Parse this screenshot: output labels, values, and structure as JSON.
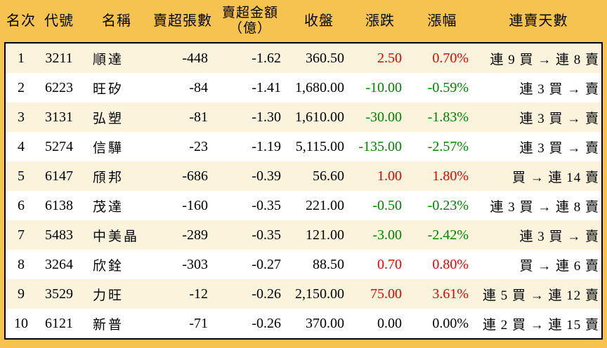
{
  "colors": {
    "frame_orange": "#f6c250",
    "border_black": "#000000",
    "row_stripe_cream": "#fbf3dc",
    "row_white": "#ffffff",
    "text": "#000000",
    "up_red": "#e60000",
    "down_green": "#008000"
  },
  "header": {
    "rank": "名次",
    "code": "代號",
    "name": "名稱",
    "sell_volume": "賣超張數",
    "sell_amount_line1": "賣超金額",
    "sell_amount_line2": "（億）",
    "close": "收盤",
    "change": "漲跌",
    "change_pct": "漲幅",
    "streak": "連賣天數"
  },
  "chart_data": {
    "type": "table",
    "columns": [
      "名次",
      "代號",
      "名稱",
      "賣超張數",
      "賣超金額（億）",
      "收盤",
      "漲跌",
      "漲幅",
      "連賣天數"
    ],
    "rows": [
      {
        "rank": "1",
        "code": "3211",
        "name": "順達",
        "sell_volume": "-448",
        "sell_amount": "-1.62",
        "close": "360.50",
        "change": "2.50",
        "change_pct": "0.70%",
        "streak": "連 9 買 → 連 8 賣",
        "trend": "up"
      },
      {
        "rank": "2",
        "code": "6223",
        "name": "旺矽",
        "sell_volume": "-84",
        "sell_amount": "-1.41",
        "close": "1,680.00",
        "change": "-10.00",
        "change_pct": "-0.59%",
        "streak": "連 3 買 → 賣",
        "trend": "down"
      },
      {
        "rank": "3",
        "code": "3131",
        "name": "弘塑",
        "sell_volume": "-81",
        "sell_amount": "-1.30",
        "close": "1,610.00",
        "change": "-30.00",
        "change_pct": "-1.83%",
        "streak": "連 3 買 → 賣",
        "trend": "down"
      },
      {
        "rank": "4",
        "code": "5274",
        "name": "信驊",
        "sell_volume": "-23",
        "sell_amount": "-1.19",
        "close": "5,115.00",
        "change": "-135.00",
        "change_pct": "-2.57%",
        "streak": "連 3 買 → 賣",
        "trend": "down"
      },
      {
        "rank": "5",
        "code": "6147",
        "name": "頎邦",
        "sell_volume": "-686",
        "sell_amount": "-0.39",
        "close": "56.60",
        "change": "1.00",
        "change_pct": "1.80%",
        "streak": "買 → 連 14 賣",
        "trend": "up"
      },
      {
        "rank": "6",
        "code": "6138",
        "name": "茂達",
        "sell_volume": "-160",
        "sell_amount": "-0.35",
        "close": "221.00",
        "change": "-0.50",
        "change_pct": "-0.23%",
        "streak": "連 3 買 → 連 8 賣",
        "trend": "down"
      },
      {
        "rank": "7",
        "code": "5483",
        "name": "中美晶",
        "sell_volume": "-289",
        "sell_amount": "-0.35",
        "close": "121.00",
        "change": "-3.00",
        "change_pct": "-2.42%",
        "streak": "連 3 買 → 賣",
        "trend": "down"
      },
      {
        "rank": "8",
        "code": "3264",
        "name": "欣銓",
        "sell_volume": "-303",
        "sell_amount": "-0.27",
        "close": "88.50",
        "change": "0.70",
        "change_pct": "0.80%",
        "streak": "買 → 連 6 賣",
        "trend": "up"
      },
      {
        "rank": "9",
        "code": "3529",
        "name": "力旺",
        "sell_volume": "-12",
        "sell_amount": "-0.26",
        "close": "2,150.00",
        "change": "75.00",
        "change_pct": "3.61%",
        "streak": "連 5 買 → 連 12 賣",
        "trend": "up"
      },
      {
        "rank": "10",
        "code": "6121",
        "name": "新普",
        "sell_volume": "-71",
        "sell_amount": "-0.26",
        "close": "370.00",
        "change": "0.00",
        "change_pct": "0.00%",
        "streak": "連 2 買 → 連 15 賣",
        "trend": "flat"
      }
    ]
  }
}
